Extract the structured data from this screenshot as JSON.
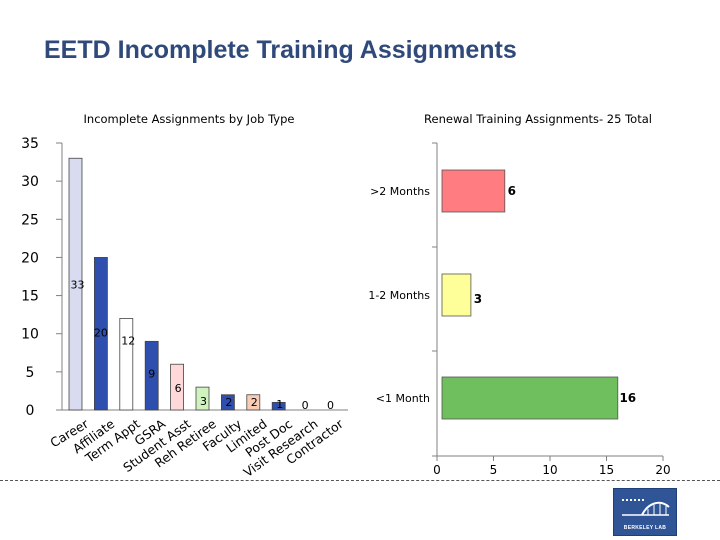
{
  "slide": {
    "title": "EETD Incomplete Training Assignments",
    "logo_text": "BERKELEY LAB"
  },
  "chart_data": [
    {
      "type": "bar",
      "title": "Incomplete Assignments by Job Type",
      "categories": [
        "Career",
        "Affiliate",
        "Term Appt",
        "GSRA",
        "Student Asst",
        "Reh Retiree",
        "Faculty",
        "Limited",
        "Post Doc",
        "Visit Research",
        "Contractor"
      ],
      "values": [
        33,
        20,
        12,
        9,
        6,
        3,
        2,
        2,
        1,
        0,
        0
      ],
      "value_labels": [
        "33",
        "20",
        "12",
        "9",
        "6",
        "3",
        "2",
        "2",
        "1",
        "0",
        "0"
      ],
      "colors": [
        "#d9dbf0",
        "#2f4fae",
        "#ffffff",
        "#2f4fae",
        "#ffd9d9",
        "#cff2bf",
        "#2f4fae",
        "#f9cdb5",
        "#2f4fae",
        "#2f4fae",
        "#2f4fae"
      ],
      "ylim": [
        0,
        35
      ],
      "yticks": [
        "0",
        "5",
        "10",
        "15",
        "20",
        "25",
        "30",
        "35"
      ],
      "xlabel": "",
      "ylabel": ""
    },
    {
      "type": "bar",
      "orientation": "horizontal",
      "title": "Renewal Training Assignments- 25 Total",
      "categories": [
        ">2 Months",
        "1-2 Months",
        "<1 Month"
      ],
      "values": [
        6,
        3,
        16
      ],
      "value_labels": [
        "6",
        "3",
        "16"
      ],
      "colors": [
        "#ff7c80",
        "#ffff99",
        "#70bf5f"
      ],
      "xlim": [
        0,
        20
      ],
      "xticks": [
        "0",
        "5",
        "10",
        "15",
        "20"
      ],
      "xlabel": "",
      "ylabel": ""
    }
  ]
}
